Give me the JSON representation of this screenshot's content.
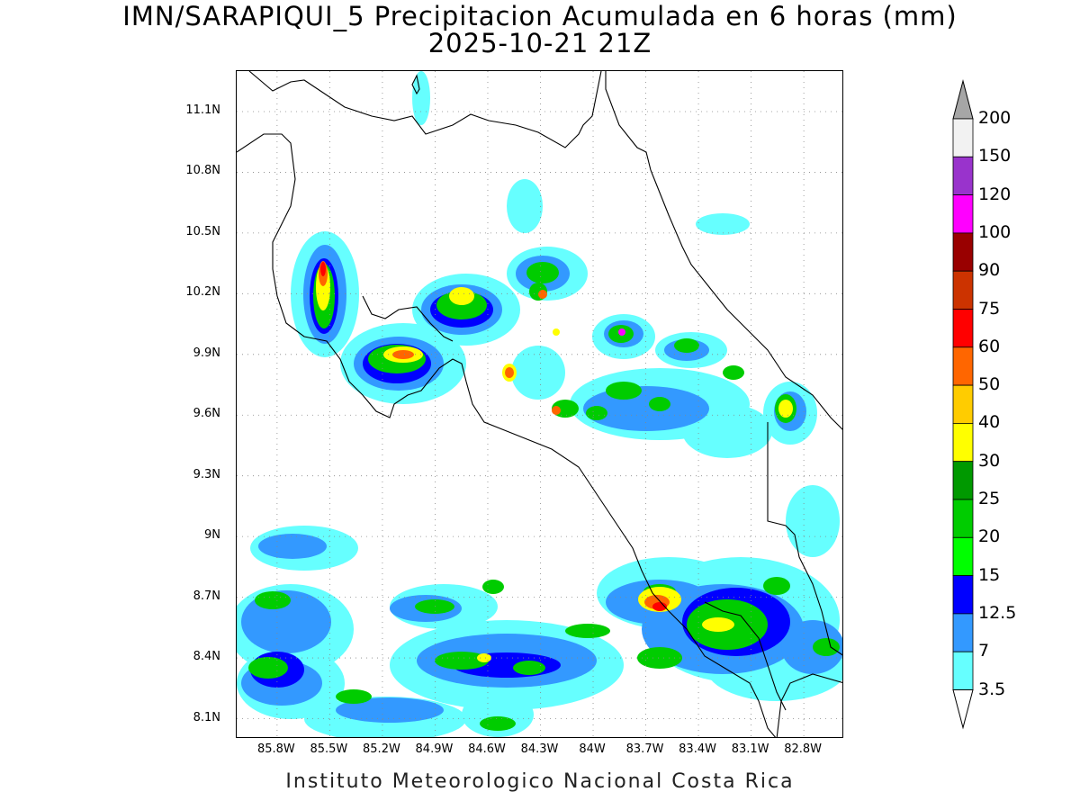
{
  "title": {
    "line1": "IMN/SARAPIQUI_5 Precipitacion Acumulada en 6 horas (mm)",
    "line2": "2025-10-21 21Z"
  },
  "footer": "Instituto Meteorologico Nacional Costa Rica",
  "map": {
    "projection": "lat-lon",
    "lon_range": [
      -86.03,
      -82.57
    ],
    "lat_range": [
      8.0,
      11.3
    ],
    "lat_ticks": [
      {
        "value": 11.1,
        "label": "11.1N"
      },
      {
        "value": 10.8,
        "label": "10.8N"
      },
      {
        "value": 10.5,
        "label": "10.5N"
      },
      {
        "value": 10.2,
        "label": "10.2N"
      },
      {
        "value": 9.9,
        "label": "9.9N"
      },
      {
        "value": 9.6,
        "label": "9.6N"
      },
      {
        "value": 9.3,
        "label": "9.3N"
      },
      {
        "value": 9.0,
        "label": "9N"
      },
      {
        "value": 8.7,
        "label": "8.7N"
      },
      {
        "value": 8.4,
        "label": "8.4N"
      },
      {
        "value": 8.1,
        "label": "8.1N"
      }
    ],
    "lon_ticks": [
      {
        "value": -85.8,
        "label": "85.8W"
      },
      {
        "value": -85.5,
        "label": "85.5W"
      },
      {
        "value": -85.2,
        "label": "85.2W"
      },
      {
        "value": -84.9,
        "label": "84.9W"
      },
      {
        "value": -84.6,
        "label": "84.6W"
      },
      {
        "value": -84.3,
        "label": "84.3W"
      },
      {
        "value": -84.0,
        "label": "84W"
      },
      {
        "value": -83.7,
        "label": "83.7W"
      },
      {
        "value": -83.4,
        "label": "83.4W"
      },
      {
        "value": -83.1,
        "label": "83.1W"
      },
      {
        "value": -82.8,
        "label": "82.8W"
      }
    ],
    "grid": "dotted"
  },
  "colorbar": {
    "labels": [
      "200",
      "150",
      "120",
      "100",
      "90",
      "75",
      "60",
      "50",
      "40",
      "30",
      "25",
      "20",
      "15",
      "12.5",
      "7",
      "3.5"
    ],
    "colors": [
      "#f2f2f2",
      "#9933cc",
      "#ff00ff",
      "#990000",
      "#cc3300",
      "#ff0000",
      "#ff6600",
      "#ffcc00",
      "#ffff00",
      "#009900",
      "#00cc00",
      "#00ff00",
      "#0000ff",
      "#3399ff",
      "#66ffff"
    ],
    "over_color": "#a6a6a6",
    "under_color": "#ffffff"
  }
}
